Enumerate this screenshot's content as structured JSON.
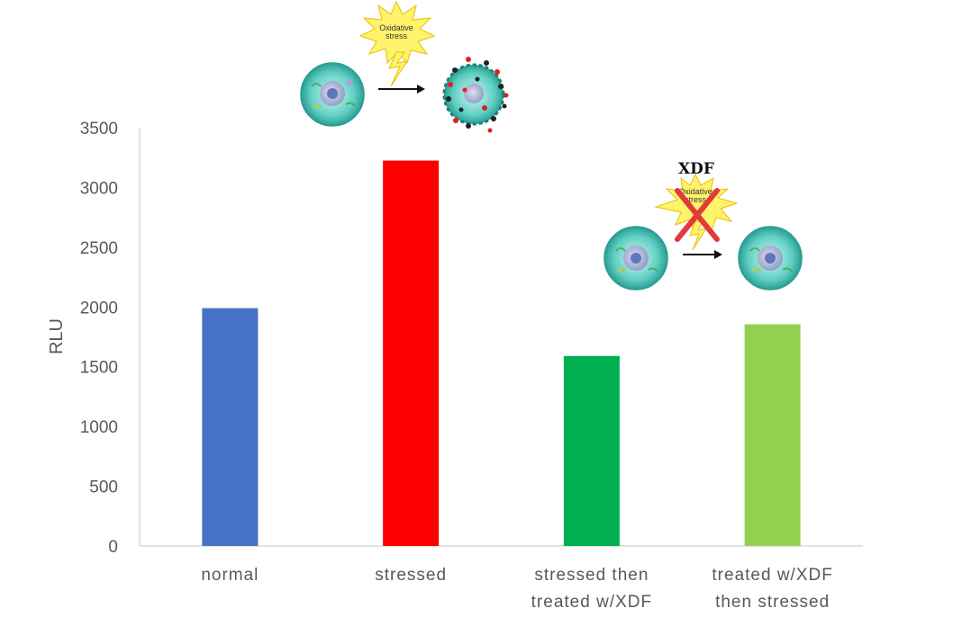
{
  "chart_data": {
    "type": "bar",
    "categories": [
      [
        "normal"
      ],
      [
        "stressed"
      ],
      [
        "stressed then",
        "treated w/XDF"
      ],
      [
        "treated w/XDF",
        "then stressed"
      ]
    ],
    "values": [
      1990,
      3225,
      1590,
      1855
    ],
    "colors": [
      "#4472C4",
      "#FF0000",
      "#00B050",
      "#92D050"
    ],
    "ylabel": "RLU",
    "ylim": [
      0,
      3500
    ],
    "yticks": [
      0,
      500,
      1000,
      1500,
      2000,
      2500,
      3000,
      3500
    ],
    "grid": false
  },
  "annotations": {
    "stress_burst_label": [
      "Oxidative",
      "stress"
    ],
    "xdf_label": "XDF",
    "xdf_burst_label": [
      "Oxidative",
      "stress"
    ]
  }
}
